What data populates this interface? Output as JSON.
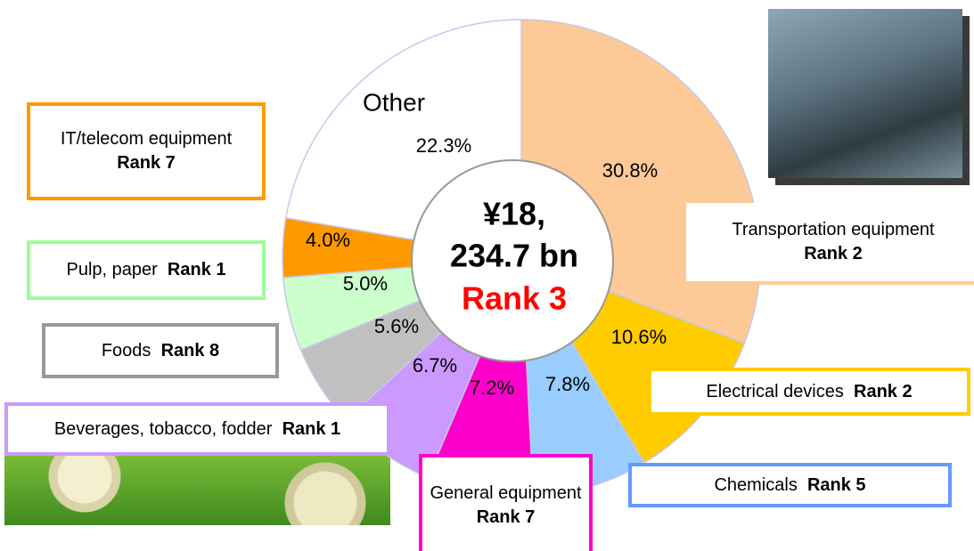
{
  "chart_data": {
    "type": "pie",
    "categories": [
      "Transportation equipment",
      "Electrical devices",
      "Chemicals",
      "General equipment",
      "Beverages, tobacco, fodder",
      "Foods",
      "Pulp, paper",
      "IT/telecom equipment",
      "Other"
    ],
    "ranks": [
      "Rank 2",
      "Rank 2",
      "Rank 5",
      "Rank 7",
      "Rank 1",
      "Rank 8",
      "Rank 1",
      "Rank 7",
      null
    ],
    "values": [
      30.8,
      10.6,
      7.8,
      7.2,
      6.7,
      5.6,
      5.0,
      4.0,
      22.3
    ],
    "value_labels": [
      "30.8%",
      "10.6%",
      "7.8%",
      "7.2%",
      "6.7%",
      "5.6%",
      "5.0%",
      "4.0%",
      "22.3%"
    ],
    "colors": [
      "#fcc997",
      "#ffcc00",
      "#99ccff",
      "#ff00cc",
      "#cc99ff",
      "#c0c0c0",
      "#ccffcc",
      "#ff9900",
      "#ffffff"
    ],
    "total_lines": [
      "¥18,",
      "234.7 bn"
    ],
    "total_rank": "Rank 3"
  }
}
